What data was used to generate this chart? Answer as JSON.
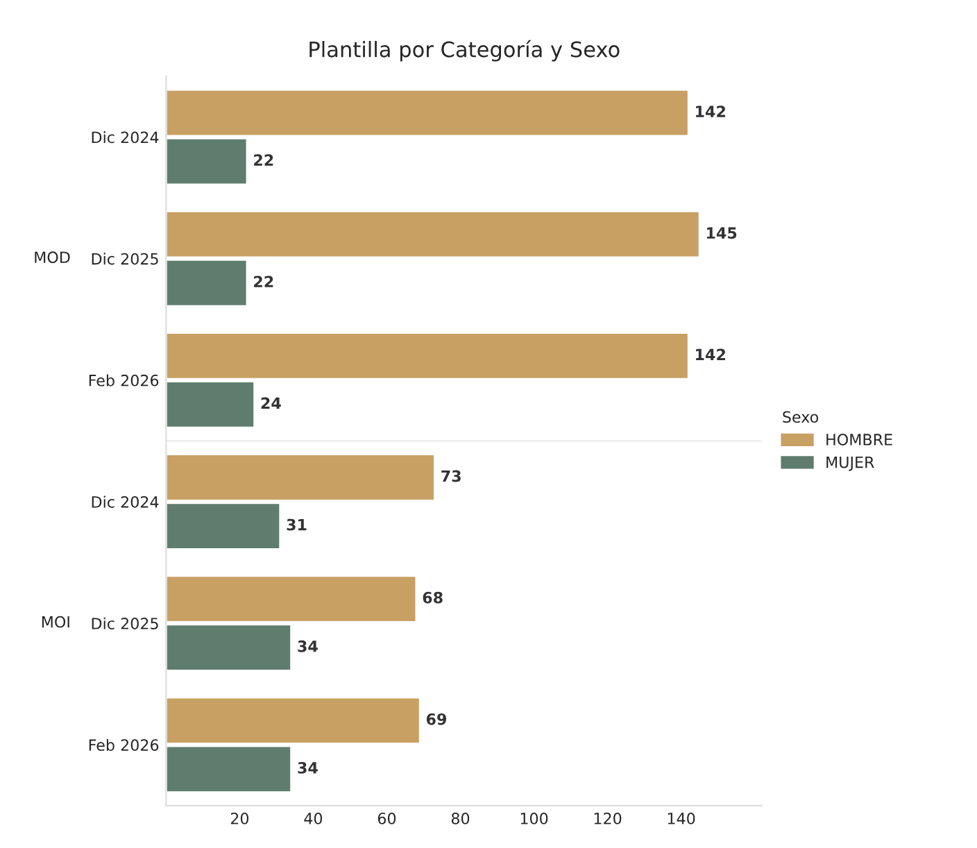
{
  "chart_data": {
    "type": "bar",
    "orientation": "horizontal",
    "title": "Plantilla por Categoría y Sexo",
    "categories": [
      "Dic 2024",
      "Dic 2025",
      "Feb 2026",
      "Dic 2024",
      "Dic 2025",
      "Feb 2026"
    ],
    "series": [
      {
        "name": "HOMBRE",
        "color": "#c9a063",
        "values": [
          142,
          145,
          142,
          73,
          68,
          69
        ]
      },
      {
        "name": "MUJER",
        "color": "#5e7d6e",
        "values": [
          22,
          22,
          24,
          31,
          34,
          34
        ]
      }
    ],
    "annotations": [
      "MOD",
      "MOI"
    ],
    "xlim": [
      0,
      162
    ],
    "xticks": [
      20,
      40,
      60,
      80,
      100,
      120,
      140
    ],
    "data_labels": true,
    "legend": "right",
    "legend_title": "Sexo",
    "grid": false
  }
}
